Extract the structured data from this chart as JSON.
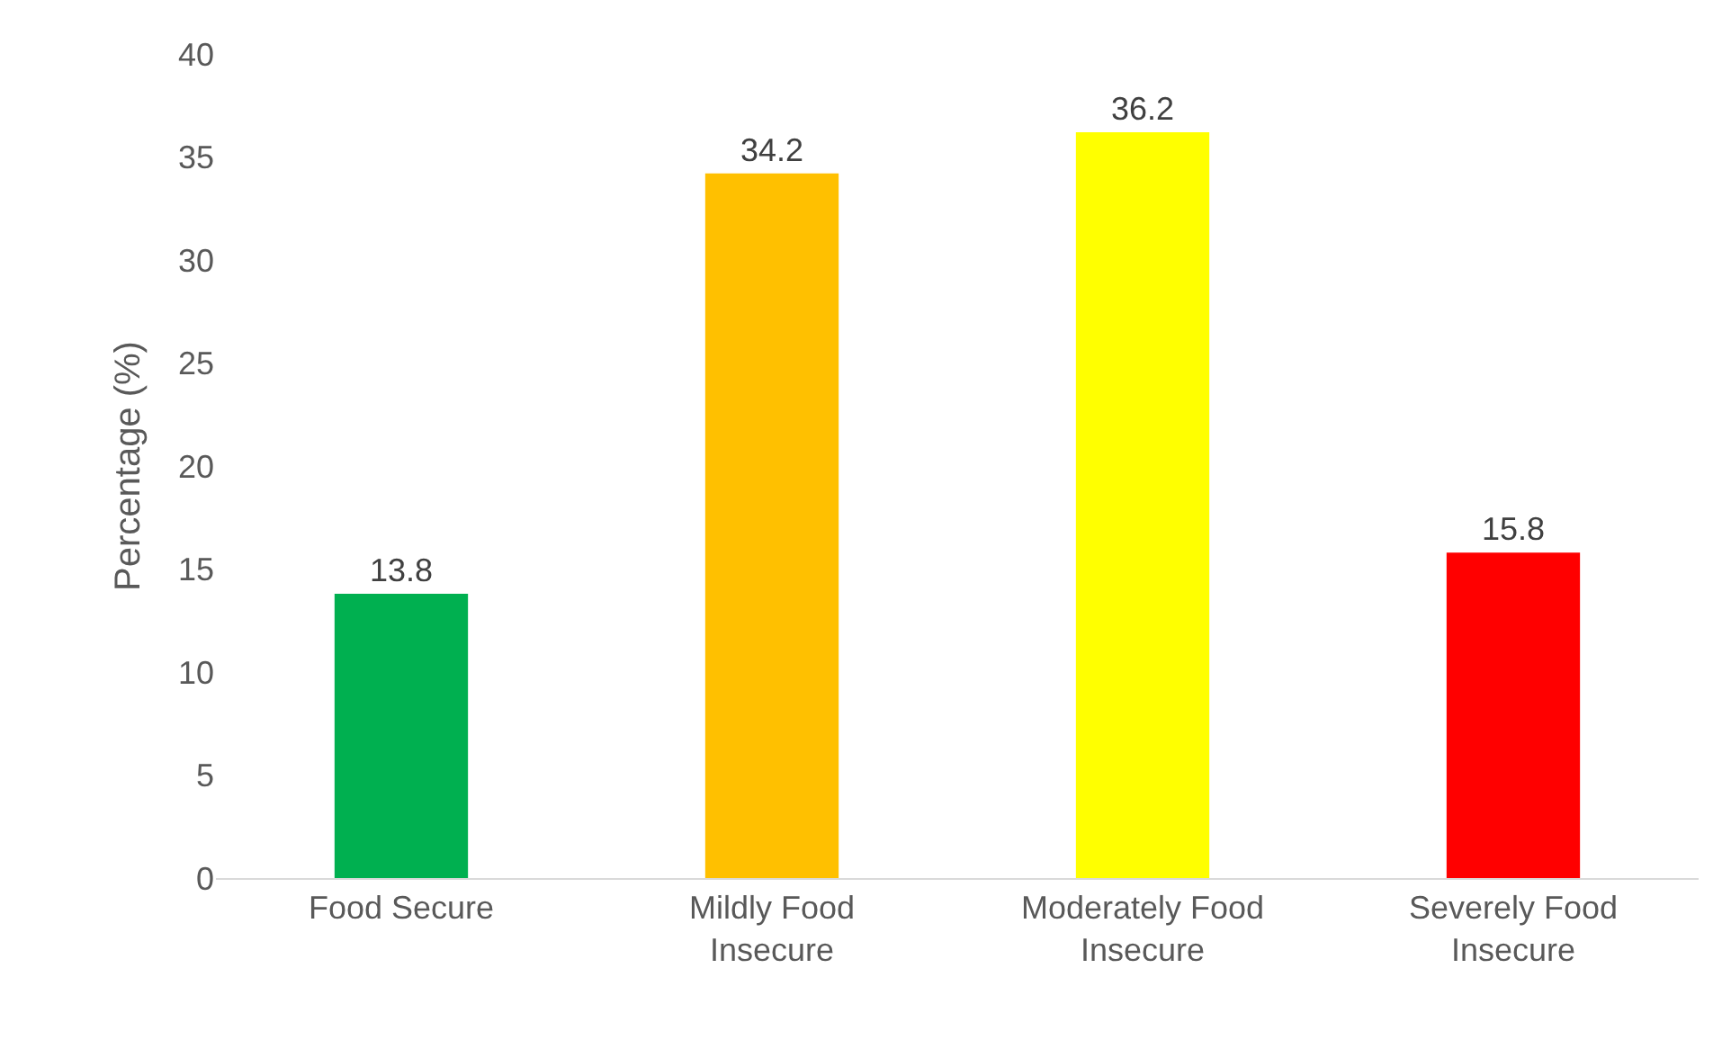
{
  "chart_data": {
    "type": "bar",
    "ylabel": "Percentage (%)",
    "categories": [
      "Food Secure",
      "Mildly Food Insecure",
      "Moderately Food Insecure",
      "Severely Food Insecure"
    ],
    "values": [
      13.8,
      34.2,
      36.2,
      15.8
    ],
    "colors": [
      "#00b050",
      "#ffc000",
      "#ffff00",
      "#ff0000"
    ],
    "ylim": [
      0,
      40
    ],
    "yticks": [
      0,
      5,
      10,
      15,
      20,
      25,
      30,
      35,
      40
    ],
    "grid": false,
    "data_labels": true
  }
}
